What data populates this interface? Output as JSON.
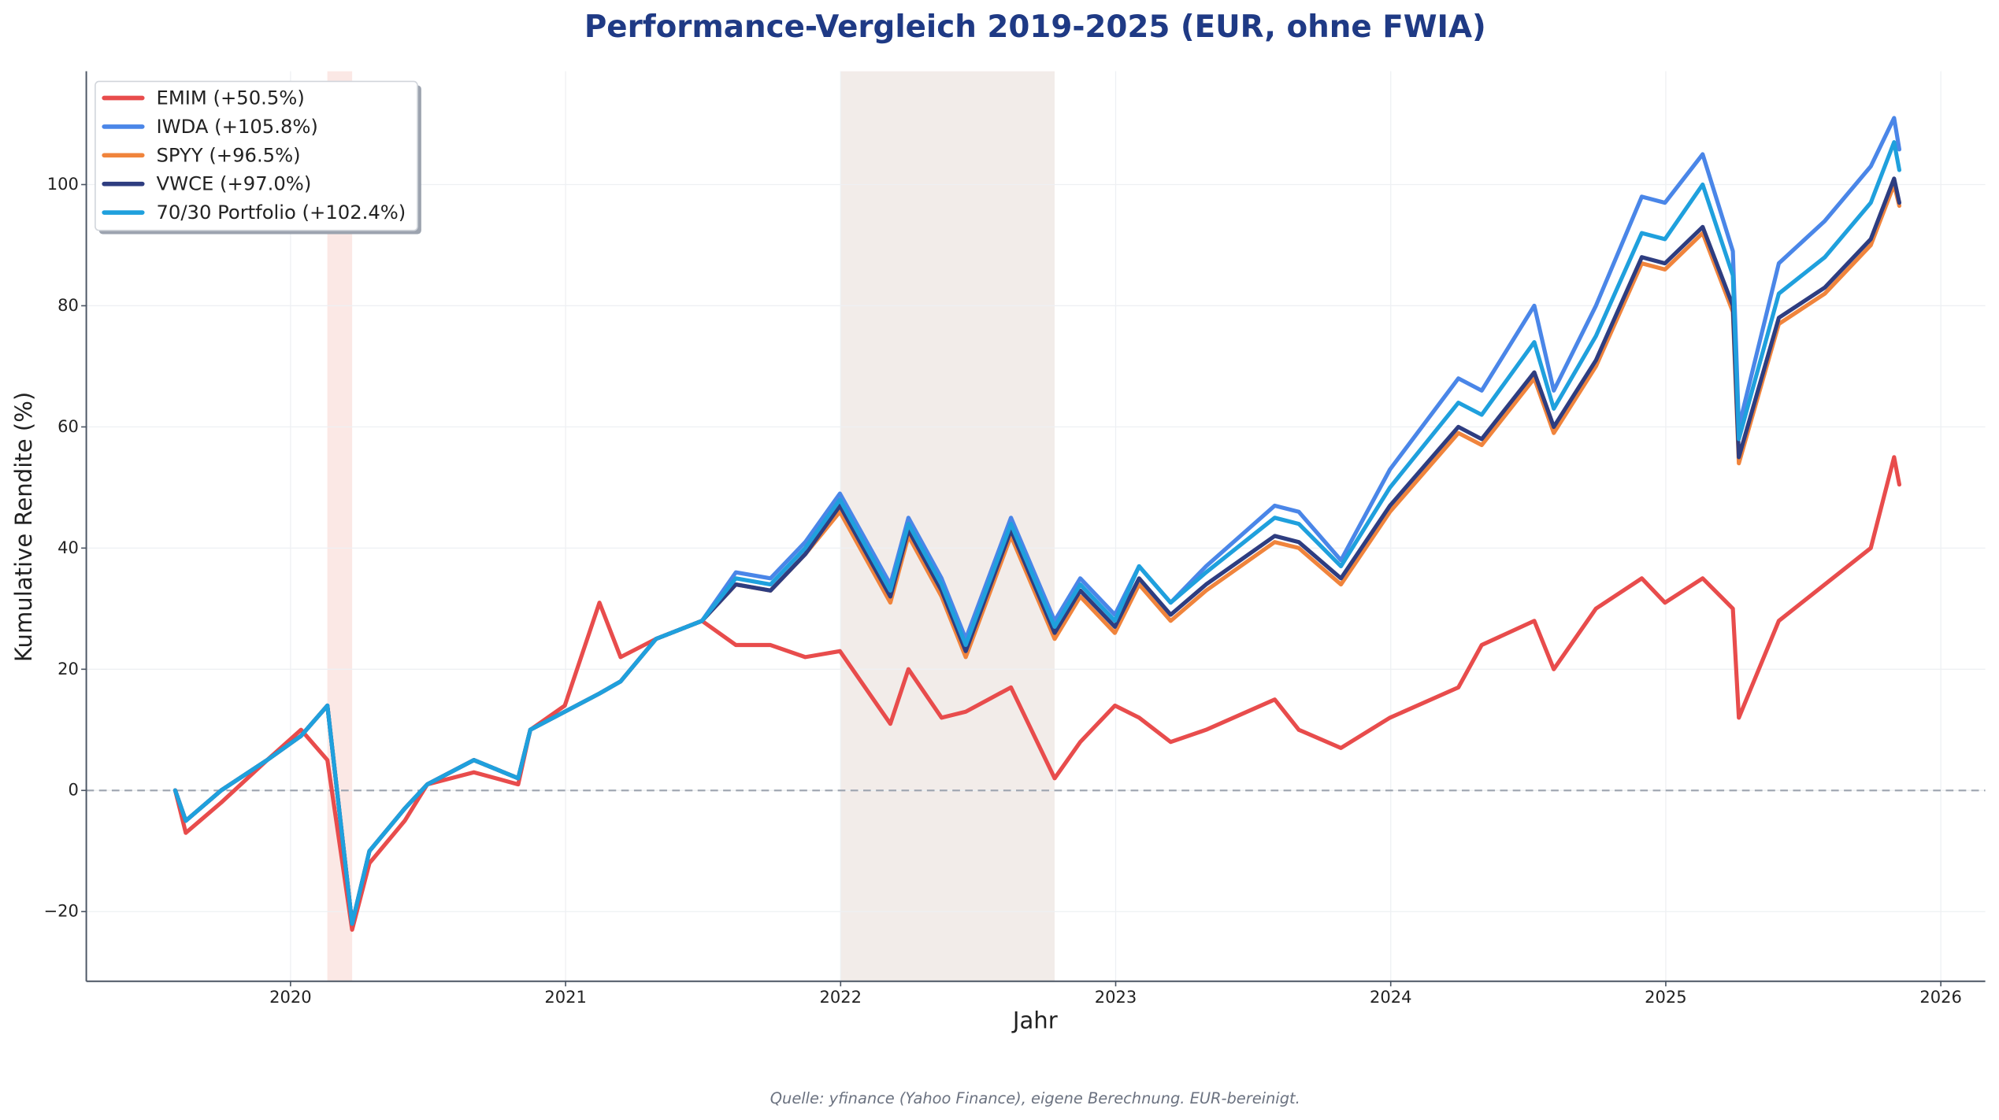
{
  "chart_data": {
    "type": "line",
    "title": "Performance-Vergleich 2019-2025 (EUR, ohne FWIA)",
    "xlabel": "Jahr",
    "ylabel": "Kumulative Rendite (%)",
    "source": "Quelle: yfinance (Yahoo Finance), eigene Berechnung. EUR-bereinigt.",
    "xlim": [
      "2019-04-05",
      "2026-03-01"
    ],
    "ylim": [
      -31.5,
      118.7
    ],
    "x_ticks": [
      "2020",
      "2021",
      "2022",
      "2023",
      "2024",
      "2025",
      "2026"
    ],
    "y_ticks": [
      -20,
      0,
      20,
      40,
      60,
      80,
      100
    ],
    "y_tick_labels": [
      "−20",
      "0",
      "20",
      "40",
      "60",
      "80",
      "100"
    ],
    "grid": true,
    "legend_position": "top-left",
    "zero_line": {
      "y": 0,
      "style": "dashed",
      "color": "#9ca3af"
    },
    "shaded_periods": [
      {
        "start": "2020-02-19",
        "end": "2020-03-23",
        "color": "#f9d9d4"
      },
      {
        "start": "2022-01-01",
        "end": "2022-10-12",
        "color": "#e9dfda"
      }
    ],
    "x": [
      "2019-08-01",
      "2019-08-15",
      "2019-10-01",
      "2019-12-01",
      "2020-01-15",
      "2020-02-19",
      "2020-03-23",
      "2020-04-15",
      "2020-06-01",
      "2020-07-01",
      "2020-09-01",
      "2020-10-30",
      "2020-11-15",
      "2020-12-31",
      "2021-02-15",
      "2021-03-15",
      "2021-05-01",
      "2021-07-01",
      "2021-08-15",
      "2021-09-30",
      "2021-11-15",
      "2021-12-31",
      "2022-03-08",
      "2022-04-01",
      "2022-05-15",
      "2022-06-16",
      "2022-08-15",
      "2022-10-12",
      "2022-11-15",
      "2022-12-31",
      "2023-02-01",
      "2023-03-15",
      "2023-05-01",
      "2023-07-31",
      "2023-09-01",
      "2023-10-27",
      "2023-12-31",
      "2024-03-31",
      "2024-05-01",
      "2024-07-10",
      "2024-08-05",
      "2024-09-30",
      "2024-11-30",
      "2024-12-31",
      "2025-02-19",
      "2025-03-31",
      "2025-04-08",
      "2025-05-31",
      "2025-07-31",
      "2025-09-30",
      "2025-10-31",
      "2025-11-07"
    ],
    "series": [
      {
        "name": "EMIM (+50.5%)",
        "color": "#e84c4c",
        "values": [
          0,
          -7,
          -2,
          5,
          10,
          5,
          -23,
          -12,
          -5,
          1,
          3,
          1,
          10,
          14,
          31,
          22,
          25,
          28,
          24,
          24,
          22,
          23,
          11,
          20,
          12,
          13,
          17,
          2,
          8,
          14,
          12,
          8,
          10,
          15,
          10,
          7,
          12,
          17,
          24,
          28,
          20,
          30,
          35,
          31,
          35,
          30,
          12,
          28,
          34,
          40,
          55,
          50.5
        ]
      },
      {
        "name": "IWDA (+105.8%)",
        "color": "#4a86e8",
        "values": [
          0,
          -5,
          0,
          5,
          9,
          14,
          -22,
          -10,
          -3,
          1,
          5,
          2,
          10,
          13,
          16,
          18,
          25,
          28,
          36,
          35,
          41,
          49,
          34,
          45,
          35,
          25,
          45,
          28,
          35,
          29,
          37,
          31,
          37,
          47,
          46,
          38,
          53,
          68,
          66,
          80,
          66,
          80,
          98,
          97,
          105,
          89,
          60,
          87,
          94,
          103,
          111,
          105.8
        ]
      },
      {
        "name": "SPYY (+96.5%)",
        "color": "#f0843c",
        "values": [
          0,
          -5,
          0,
          5,
          9,
          14,
          -22,
          -10,
          -3,
          1,
          5,
          2,
          10,
          13,
          16,
          18,
          25,
          28,
          34,
          33,
          39,
          46,
          31,
          42,
          32,
          22,
          42,
          25,
          32,
          26,
          34,
          28,
          33,
          41,
          40,
          34,
          46,
          59,
          57,
          68,
          59,
          70,
          87,
          86,
          92,
          79,
          54,
          77,
          82,
          90,
          100,
          96.5
        ]
      },
      {
        "name": "VWCE (+97.0%)",
        "color": "#2e3d80",
        "values": [
          0,
          -5,
          0,
          5,
          9,
          14,
          -22,
          -10,
          -3,
          1,
          5,
          2,
          10,
          13,
          16,
          18,
          25,
          28,
          34,
          33,
          39,
          47,
          32,
          43,
          33,
          23,
          43,
          26,
          33,
          27,
          35,
          29,
          34,
          42,
          41,
          35,
          47,
          60,
          58,
          69,
          60,
          71,
          88,
          87,
          93,
          80,
          55,
          78,
          83,
          91,
          101,
          97.0
        ]
      },
      {
        "name": "70/30 Portfolio (+102.4%)",
        "color": "#1fa0dd",
        "values": [
          0,
          -5,
          0,
          5,
          9,
          14,
          -22,
          -10,
          -3,
          1,
          5,
          2,
          10,
          13,
          16,
          18,
          25,
          28,
          35,
          34,
          40,
          48,
          33,
          44,
          34,
          24,
          44,
          27,
          34,
          28,
          37,
          31,
          36,
          45,
          44,
          37,
          50,
          64,
          62,
          74,
          63,
          75,
          92,
          91,
          100,
          85,
          58,
          82,
          88,
          97,
          107,
          102.4
        ]
      }
    ]
  }
}
